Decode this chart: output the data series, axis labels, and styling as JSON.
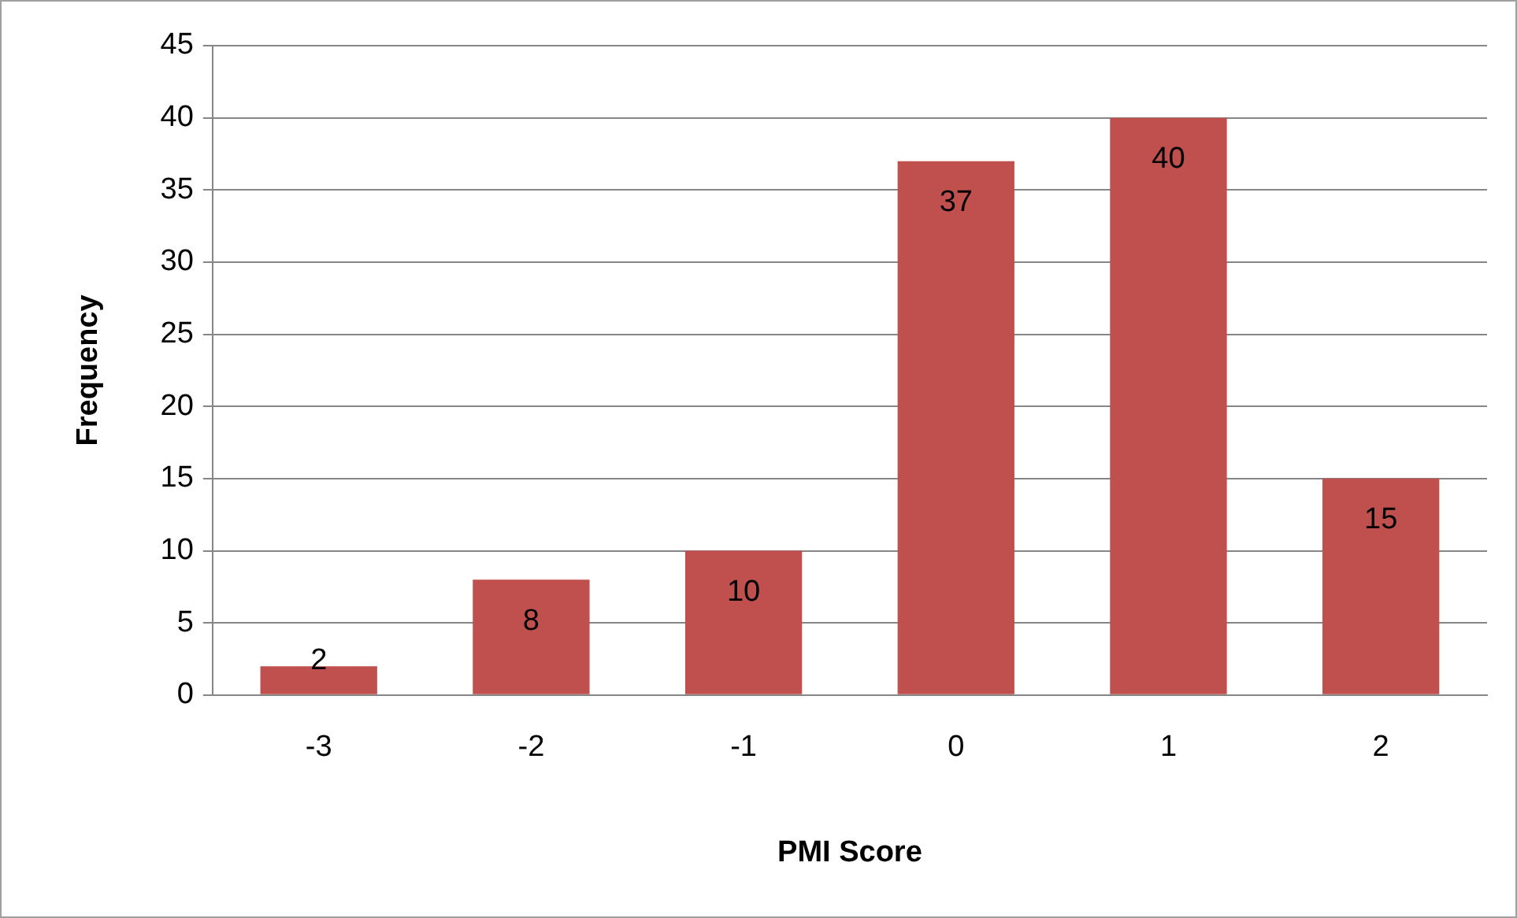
{
  "chart_data": {
    "type": "bar",
    "xlabel": "PMI Score",
    "ylabel": "Frequency",
    "categories": [
      "-3",
      "-2",
      "-1",
      "0",
      "1",
      "2"
    ],
    "values": [
      2,
      8,
      10,
      37,
      40,
      15
    ],
    "color": "#c0504d",
    "ylim": [
      0,
      45
    ],
    "yticks": [
      0,
      5,
      10,
      15,
      20,
      25,
      30,
      35,
      40,
      45
    ],
    "grid": "y",
    "data_labels": true,
    "legend": false
  }
}
